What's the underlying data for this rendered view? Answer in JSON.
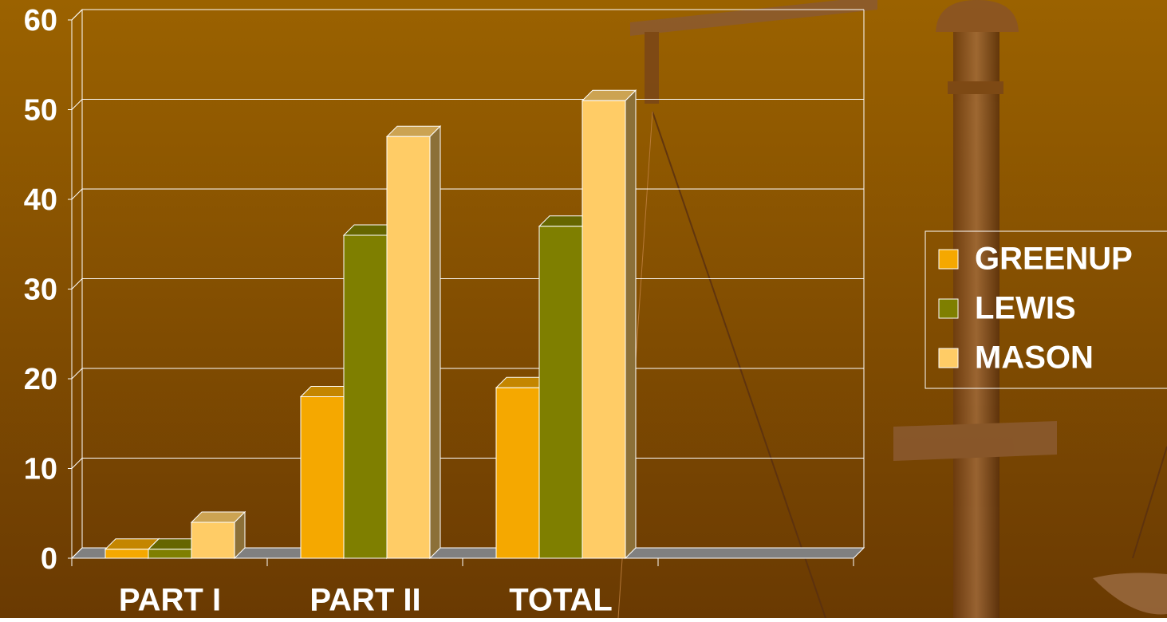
{
  "chart_data": {
    "type": "bar3d",
    "categories": [
      "PART I",
      "PART II",
      "TOTAL",
      null
    ],
    "series": [
      {
        "name": "GREENUP",
        "color": "#f5a800",
        "values": [
          1,
          18,
          19,
          null
        ]
      },
      {
        "name": "LEWIS",
        "color": "#7f7f00",
        "values": [
          1,
          36,
          37,
          null
        ]
      },
      {
        "name": "MASON",
        "color": "#ffcc66",
        "values": [
          4,
          47,
          51,
          null
        ]
      }
    ],
    "ylim": [
      0,
      60
    ],
    "yticks": [
      0,
      10,
      20,
      30,
      40,
      50,
      60
    ],
    "grid": true,
    "legend": "right"
  }
}
